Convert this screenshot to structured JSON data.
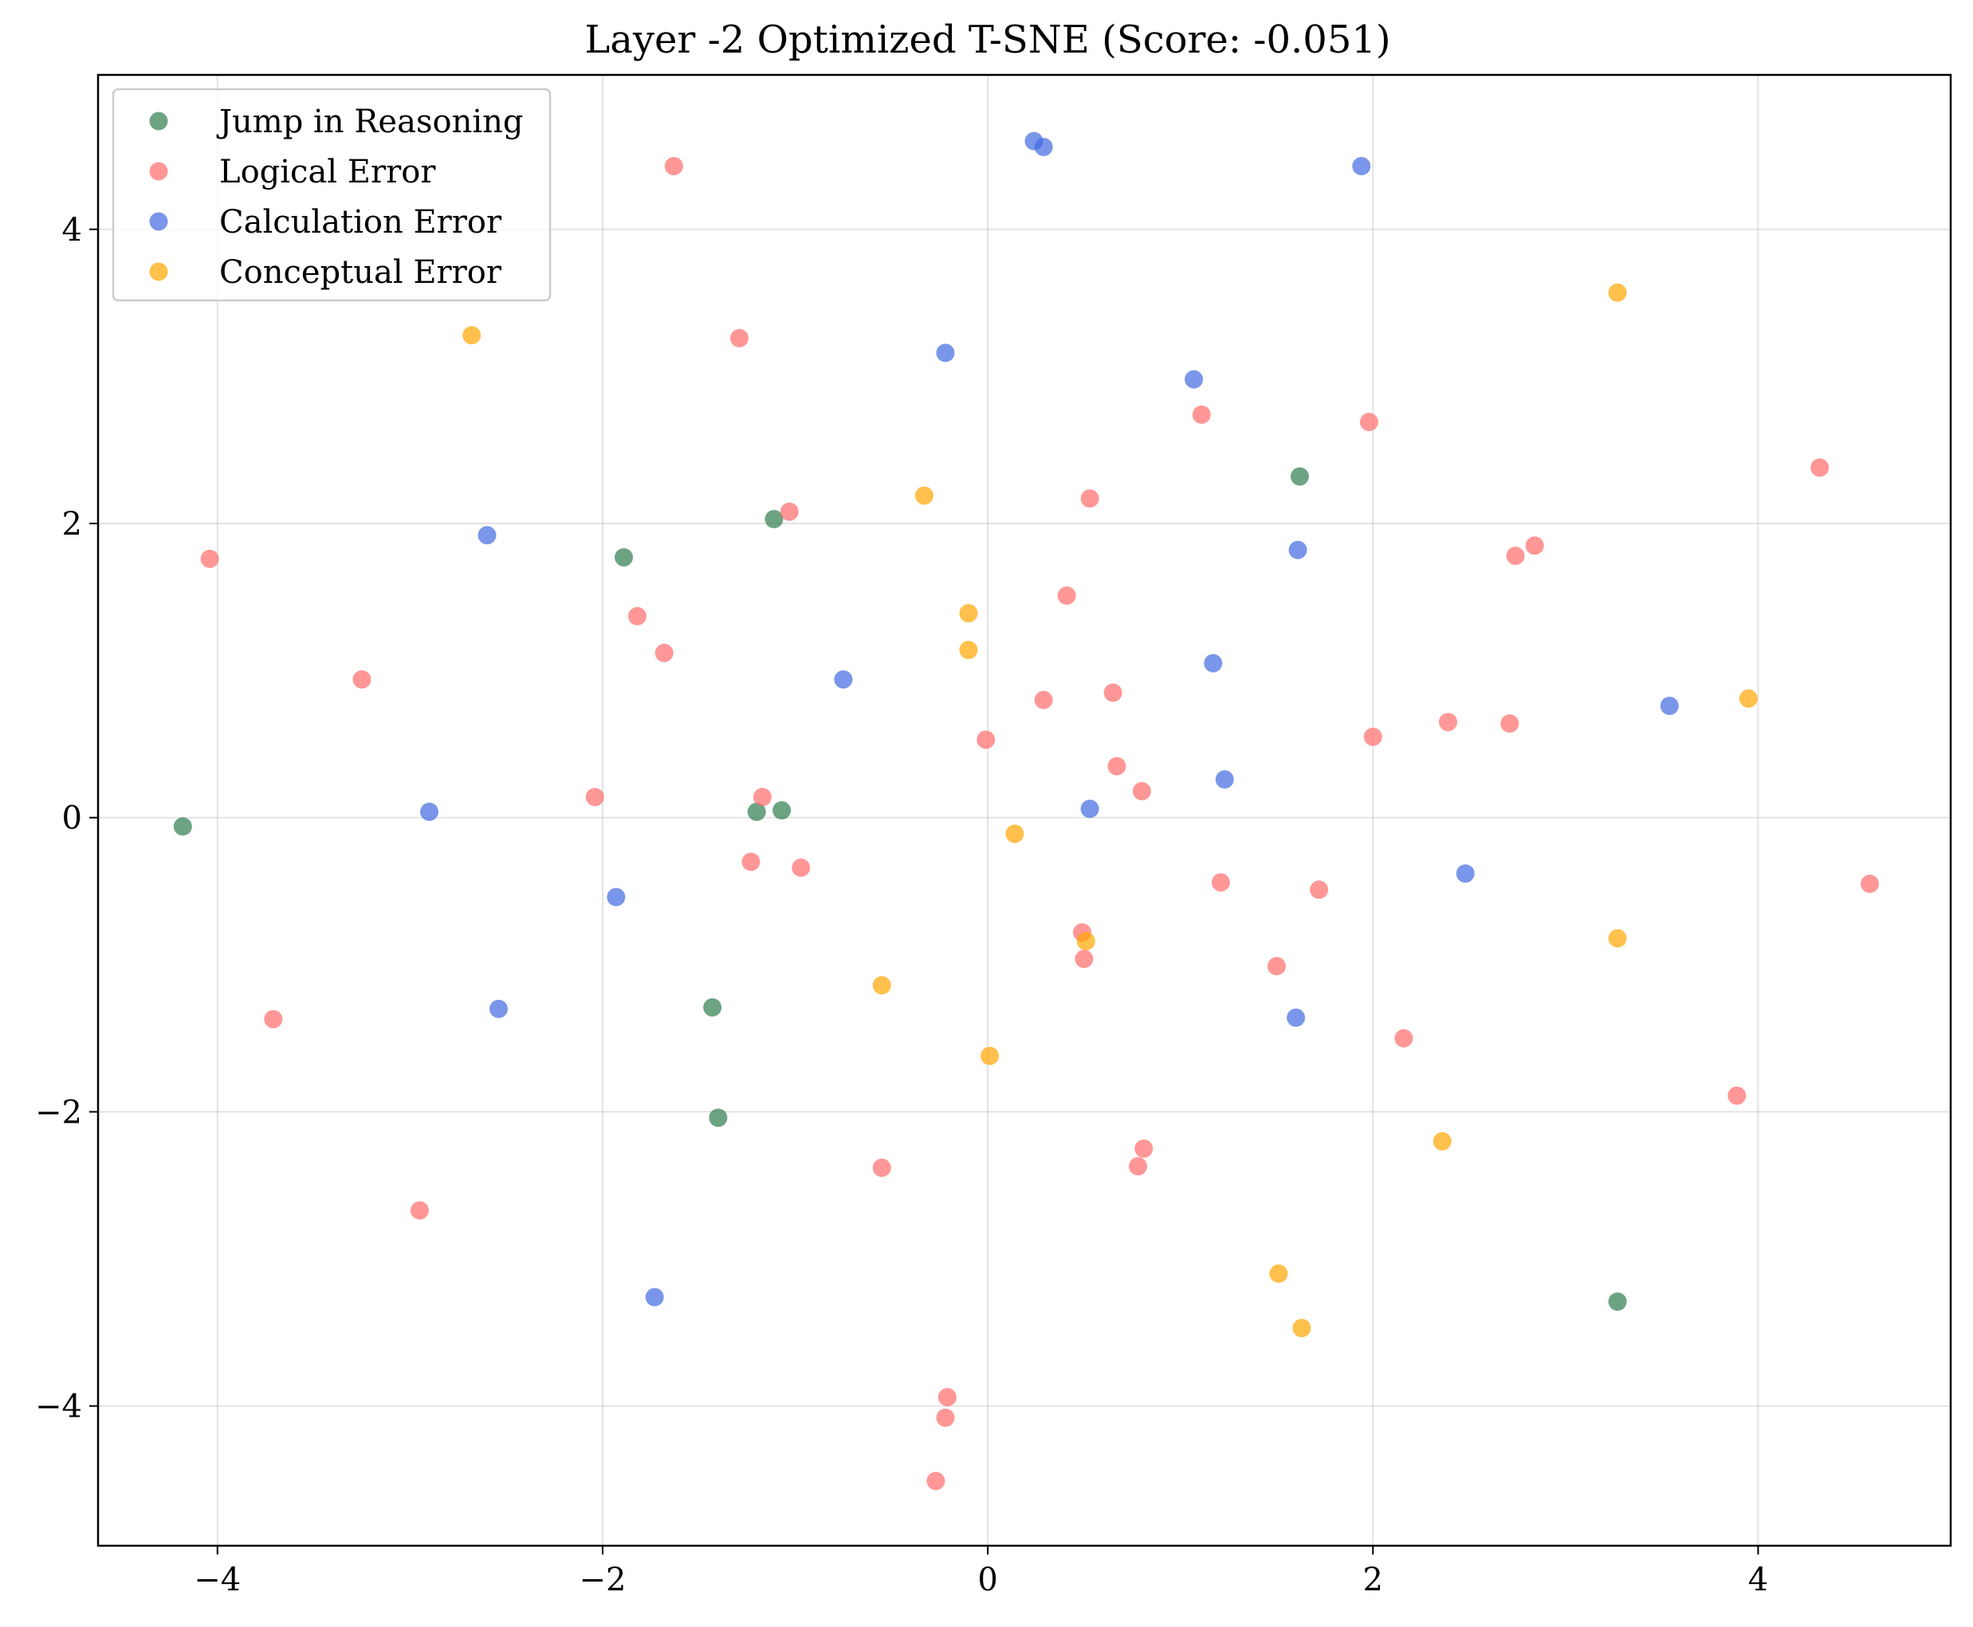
{
  "chart_data": {
    "type": "scatter",
    "title": "Layer -2 Optimized T-SNE (Score: -0.051)",
    "xlabel": "",
    "ylabel": "",
    "xlim": [
      -4.62,
      5.0
    ],
    "ylim": [
      -4.95,
      5.05
    ],
    "x_ticks": [
      -4,
      -2,
      0,
      2,
      4
    ],
    "y_ticks": [
      -4,
      -2,
      0,
      2,
      4
    ],
    "x_tick_labels": [
      "−4",
      "−2",
      "0",
      "2",
      "4"
    ],
    "y_tick_labels": [
      "−4",
      "−2",
      "0",
      "2",
      "4"
    ],
    "grid": true,
    "legend_position": "upper left",
    "series": [
      {
        "name": "Jump in Reasoning",
        "color": "#2e7d4f",
        "points": [
          [
            -4.18,
            -0.06
          ],
          [
            -1.89,
            1.77
          ],
          [
            -1.11,
            2.03
          ],
          [
            -1.2,
            0.04
          ],
          [
            -1.07,
            0.05
          ],
          [
            -1.43,
            -1.29
          ],
          [
            -1.4,
            -2.04
          ],
          [
            1.62,
            2.32
          ],
          [
            3.27,
            -3.29
          ]
        ]
      },
      {
        "name": "Logical Error",
        "color": "#ff6b6b",
        "points": [
          [
            -1.63,
            4.43
          ],
          [
            -1.29,
            3.26
          ],
          [
            -1.03,
            2.08
          ],
          [
            -4.04,
            1.76
          ],
          [
            -1.82,
            1.37
          ],
          [
            -1.68,
            1.12
          ],
          [
            -3.25,
            0.94
          ],
          [
            -2.04,
            0.14
          ],
          [
            -1.17,
            0.14
          ],
          [
            -1.23,
            -0.3
          ],
          [
            -0.97,
            -0.34
          ],
          [
            -3.71,
            -1.37
          ],
          [
            -2.95,
            -2.67
          ],
          [
            -0.55,
            -2.38
          ],
          [
            -0.21,
            -3.94
          ],
          [
            -0.22,
            -4.08
          ],
          [
            -0.27,
            -4.51
          ],
          [
            0.53,
            2.17
          ],
          [
            1.11,
            2.74
          ],
          [
            1.98,
            2.69
          ],
          [
            0.41,
            1.51
          ],
          [
            2.74,
            1.78
          ],
          [
            2.84,
            1.85
          ],
          [
            0.29,
            0.8
          ],
          [
            0.65,
            0.85
          ],
          [
            -0.01,
            0.53
          ],
          [
            2.0,
            0.55
          ],
          [
            2.39,
            0.65
          ],
          [
            2.71,
            0.64
          ],
          [
            0.67,
            0.35
          ],
          [
            0.8,
            0.18
          ],
          [
            1.21,
            -0.44
          ],
          [
            1.72,
            -0.49
          ],
          [
            0.49,
            -0.78
          ],
          [
            0.5,
            -0.96
          ],
          [
            1.5,
            -1.01
          ],
          [
            2.16,
            -1.5
          ],
          [
            0.81,
            -2.25
          ],
          [
            0.78,
            -2.37
          ],
          [
            3.89,
            -1.89
          ],
          [
            4.32,
            2.38
          ],
          [
            4.58,
            -0.45
          ]
        ]
      },
      {
        "name": "Calculation Error",
        "color": "#4169e1",
        "points": [
          [
            0.24,
            4.6
          ],
          [
            0.29,
            4.56
          ],
          [
            1.94,
            4.43
          ],
          [
            -0.22,
            3.16
          ],
          [
            1.07,
            2.98
          ],
          [
            -2.6,
            1.92
          ],
          [
            1.61,
            1.82
          ],
          [
            1.17,
            1.05
          ],
          [
            -0.75,
            0.94
          ],
          [
            3.54,
            0.76
          ],
          [
            1.23,
            0.26
          ],
          [
            0.53,
            0.06
          ],
          [
            -2.9,
            0.04
          ],
          [
            -1.93,
            -0.54
          ],
          [
            2.48,
            -0.38
          ],
          [
            -2.54,
            -1.3
          ],
          [
            1.6,
            -1.36
          ],
          [
            -1.73,
            -3.26
          ]
        ]
      },
      {
        "name": "Conceptual Error",
        "color": "#ffa500",
        "points": [
          [
            -2.68,
            3.28
          ],
          [
            3.27,
            3.57
          ],
          [
            -0.33,
            2.19
          ],
          [
            -0.1,
            1.39
          ],
          [
            -0.1,
            1.14
          ],
          [
            3.95,
            0.81
          ],
          [
            0.14,
            -0.11
          ],
          [
            0.51,
            -0.84
          ],
          [
            3.27,
            -0.82
          ],
          [
            -0.55,
            -1.14
          ],
          [
            0.01,
            -1.62
          ],
          [
            2.36,
            -2.2
          ],
          [
            1.51,
            -3.1
          ],
          [
            1.63,
            -3.47
          ]
        ]
      }
    ]
  }
}
